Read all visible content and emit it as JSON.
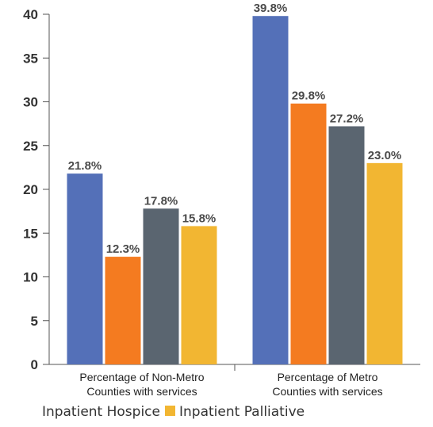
{
  "chart_data": {
    "type": "bar",
    "categories": [
      "Percentage of Non-Metro Counties with services",
      "Percentage of Metro Counties with services"
    ],
    "category_lines": [
      [
        "Percentage of Non-Metro",
        "Counties with services"
      ],
      [
        "Percentage of Metro",
        "Counties with services"
      ]
    ],
    "series": [
      {
        "values": [
          21.8,
          39.8
        ],
        "labels": [
          "21.8%",
          "39.8%"
        ],
        "color": "#5470b8"
      },
      {
        "values": [
          12.3,
          29.8
        ],
        "labels": [
          "12.3%",
          "29.8%"
        ],
        "color": "#f47b20"
      },
      {
        "name": "Inpatient Hospice",
        "values": [
          17.8,
          27.2
        ],
        "labels": [
          "17.8%",
          "27.2%"
        ],
        "color": "#5a6570"
      },
      {
        "name": "Inpatient Palliative",
        "values": [
          15.8,
          23.0
        ],
        "labels": [
          "15.8%",
          "23.0%"
        ],
        "color": "#f2b632"
      }
    ],
    "legend_labels": [
      "Inpatient Hospice",
      "Inpatient Palliative"
    ],
    "legend_placement": "bottom",
    "ylim": [
      0,
      40
    ],
    "yticks": [
      "0",
      "5",
      "10",
      "15",
      "20",
      "25",
      "30",
      "35",
      "40"
    ],
    "grid": false
  }
}
